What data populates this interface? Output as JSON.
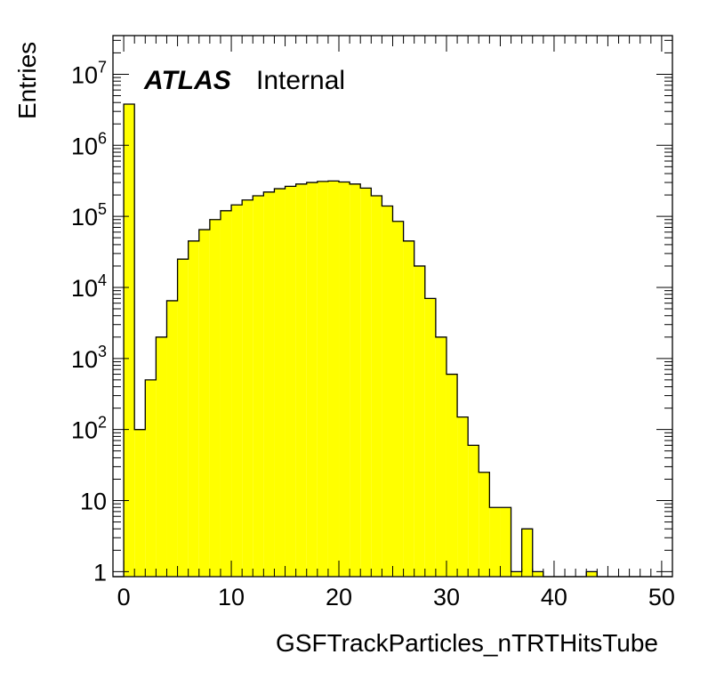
{
  "chart_data": {
    "type": "bar",
    "title": "",
    "xlabel": "GSFTrackParticles_nTRTHitsTube",
    "ylabel": "Entries",
    "xlim": [
      -1,
      51
    ],
    "ylim": [
      0.85,
      35000000
    ],
    "log_y": true,
    "grid": false,
    "bin_width": 1,
    "bin_low_edges": [
      -1,
      0,
      1,
      2,
      3,
      4,
      5,
      6,
      7,
      8,
      9,
      10,
      11,
      12,
      13,
      14,
      15,
      16,
      17,
      18,
      19,
      20,
      21,
      22,
      23,
      24,
      25,
      26,
      27,
      28,
      29,
      30,
      31,
      32,
      33,
      34,
      35,
      36,
      37,
      38,
      39,
      40,
      41,
      42,
      43,
      44,
      45,
      46,
      47,
      48,
      49,
      50
    ],
    "values": [
      0,
      3800000,
      100,
      500,
      2000,
      6500,
      25000,
      45000,
      65000,
      90000,
      120000,
      145000,
      170000,
      195000,
      220000,
      245000,
      265000,
      285000,
      300000,
      310000,
      315000,
      305000,
      285000,
      250000,
      195000,
      140000,
      85000,
      45000,
      20000,
      7000,
      2000,
      600,
      150,
      60,
      25,
      8,
      8,
      1,
      4,
      1,
      0,
      0,
      0,
      0,
      1,
      0,
      0,
      0,
      0,
      0,
      0,
      0
    ],
    "x_ticks": [
      {
        "value": 0,
        "label": "0"
      },
      {
        "value": 10,
        "label": "10"
      },
      {
        "value": 20,
        "label": "20"
      },
      {
        "value": 30,
        "label": "30"
      },
      {
        "value": 40,
        "label": "40"
      },
      {
        "value": 50,
        "label": "50"
      }
    ],
    "y_ticks": [
      {
        "value": 1,
        "base": "1",
        "exp": ""
      },
      {
        "value": 10,
        "base": "10",
        "exp": ""
      },
      {
        "value": 100,
        "base": "10",
        "exp": "2"
      },
      {
        "value": 1000,
        "base": "10",
        "exp": "3"
      },
      {
        "value": 10000,
        "base": "10",
        "exp": "4"
      },
      {
        "value": 100000,
        "base": "10",
        "exp": "5"
      },
      {
        "value": 1000000,
        "base": "10",
        "exp": "6"
      },
      {
        "value": 10000000,
        "base": "10",
        "exp": "7"
      }
    ],
    "annotations": {
      "experiment": "ATLAS",
      "status": "Internal"
    },
    "colors": {
      "fill": "#ffff00",
      "outline": "#000000"
    }
  }
}
